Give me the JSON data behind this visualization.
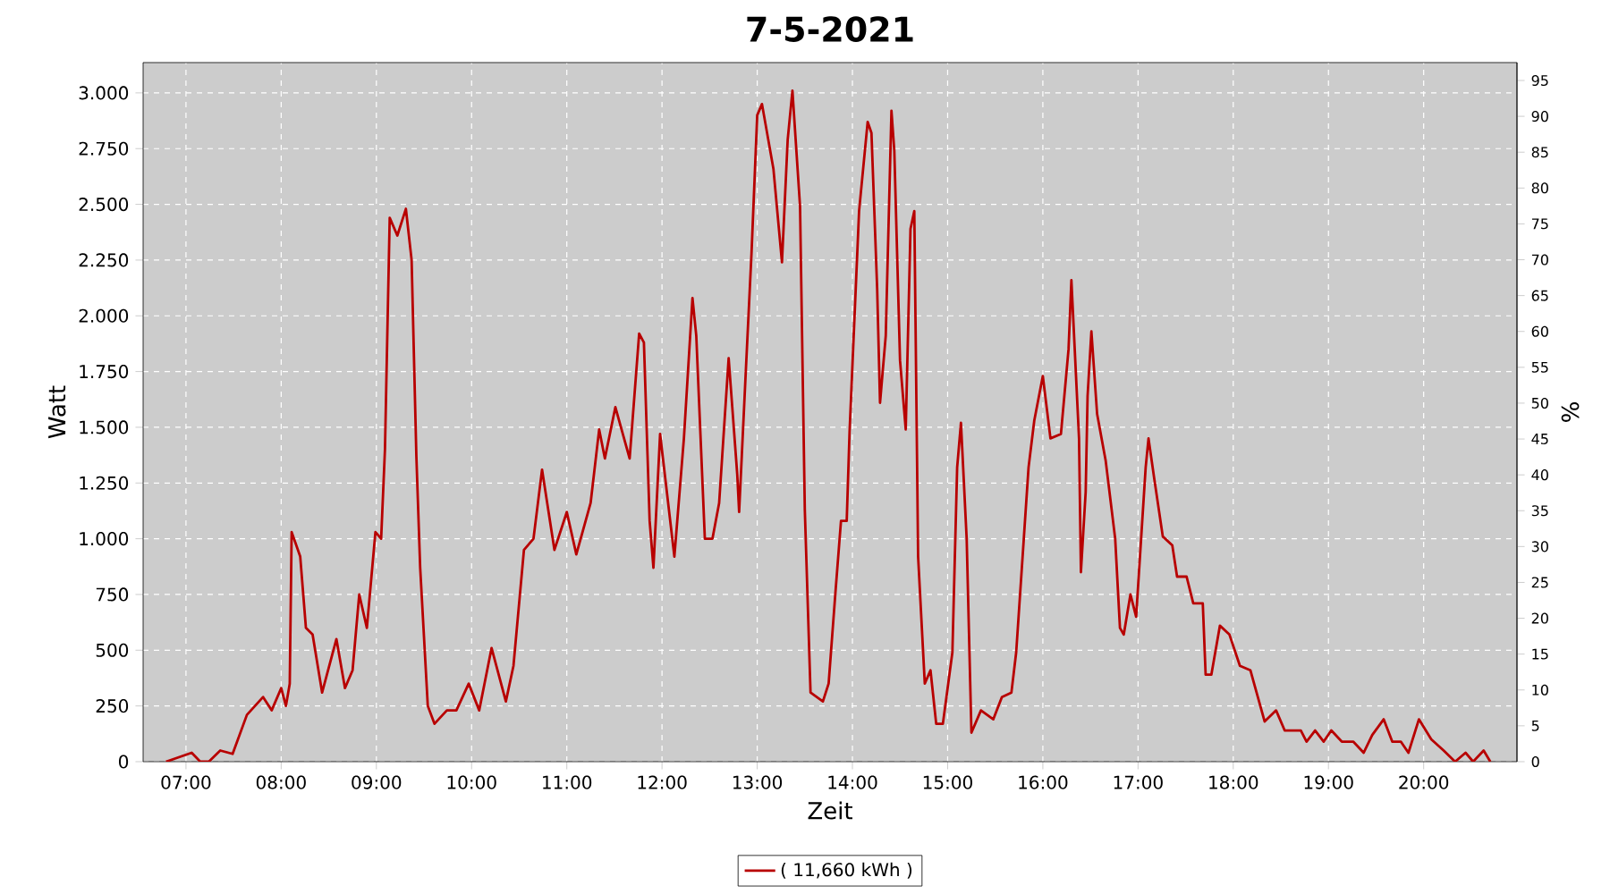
{
  "chart_data": {
    "type": "line",
    "title": "7-5-2021",
    "xlabel": "Zeit",
    "ylabel": "Watt",
    "y2label": "%",
    "x": [
      6.79,
      7.06,
      7.15,
      7.24,
      7.36,
      7.49,
      7.64,
      7.81,
      7.9,
      8.0,
      8.05,
      8.09,
      8.11,
      8.2,
      8.26,
      8.33,
      8.43,
      8.58,
      8.67,
      8.75,
      8.82,
      8.9,
      8.99,
      9.05,
      9.09,
      9.14,
      9.22,
      9.31,
      9.37,
      9.42,
      9.46,
      9.54,
      9.61,
      9.74,
      9.84,
      9.97,
      10.08,
      10.21,
      10.36,
      10.44,
      10.55,
      10.65,
      10.74,
      10.87,
      11.0,
      11.1,
      11.25,
      11.34,
      11.4,
      11.51,
      11.66,
      11.76,
      11.81,
      11.87,
      11.91,
      11.98,
      12.13,
      12.23,
      12.32,
      12.36,
      12.45,
      12.53,
      12.6,
      12.7,
      12.79,
      12.81,
      12.88,
      12.94,
      13.0,
      13.05,
      13.17,
      13.26,
      13.32,
      13.37,
      13.45,
      13.5,
      13.56,
      13.69,
      13.75,
      13.82,
      13.88,
      13.94,
      13.97,
      14.07,
      14.16,
      14.2,
      14.26,
      14.29,
      14.35,
      14.41,
      14.44,
      14.5,
      14.56,
      14.61,
      14.65,
      14.69,
      14.76,
      14.82,
      14.88,
      14.95,
      15.05,
      15.1,
      15.14,
      15.2,
      15.25,
      15.35,
      15.48,
      15.57,
      15.67,
      15.72,
      15.8,
      15.85,
      15.91,
      16.0,
      16.08,
      16.19,
      16.27,
      16.3,
      16.38,
      16.4,
      16.45,
      16.47,
      16.51,
      16.57,
      16.66,
      16.76,
      16.81,
      16.85,
      16.92,
      16.98,
      17.08,
      17.11,
      17.17,
      17.26,
      17.36,
      17.41,
      17.51,
      17.58,
      17.68,
      17.71,
      17.77,
      17.86,
      17.96,
      18.07,
      18.18,
      18.33,
      18.45,
      18.54,
      18.71,
      18.77,
      18.86,
      18.95,
      19.03,
      19.14,
      19.26,
      19.37,
      19.46,
      19.58,
      19.67,
      19.76,
      19.84,
      19.95,
      20.08,
      20.21,
      20.33,
      20.44,
      20.52,
      20.63,
      20.7
    ],
    "series": [
      {
        "name": "( 11,660 kWh )",
        "color": "#b80000",
        "values": [
          0,
          40,
          0,
          0,
          50,
          35,
          210,
          290,
          230,
          330,
          250,
          350,
          1030,
          920,
          600,
          570,
          310,
          550,
          330,
          410,
          750,
          600,
          1030,
          1000,
          1400,
          2440,
          2360,
          2480,
          2250,
          1370,
          870,
          250,
          170,
          230,
          230,
          350,
          230,
          510,
          270,
          430,
          950,
          1000,
          1310,
          950,
          1120,
          930,
          1160,
          1490,
          1360,
          1590,
          1360,
          1920,
          1880,
          1080,
          870,
          1470,
          920,
          1450,
          2080,
          1910,
          1000,
          1000,
          1160,
          1810,
          1290,
          1120,
          1750,
          2280,
          2900,
          2950,
          2660,
          2240,
          2790,
          3010,
          2490,
          1130,
          310,
          270,
          350,
          750,
          1080,
          1080,
          1480,
          2470,
          2870,
          2820,
          2120,
          1610,
          1910,
          2920,
          2740,
          1800,
          1490,
          2390,
          2470,
          920,
          350,
          410,
          170,
          170,
          490,
          1320,
          1520,
          1000,
          130,
          230,
          190,
          290,
          310,
          490,
          1000,
          1320,
          1530,
          1730,
          1450,
          1470,
          1850,
          2160,
          1450,
          850,
          1210,
          1640,
          1930,
          1560,
          1350,
          1000,
          600,
          570,
          750,
          650,
          1320,
          1450,
          1270,
          1010,
          970,
          830,
          830,
          710,
          710,
          390,
          390,
          610,
          570,
          430,
          410,
          180,
          230,
          140,
          140,
          90,
          140,
          90,
          140,
          90,
          90,
          40,
          120,
          190,
          90,
          90,
          40,
          190,
          100,
          50,
          0,
          40,
          0,
          50,
          0
        ]
      }
    ],
    "xlim": [
      6.55,
      20.98
    ],
    "xticks": [
      {
        "value": 7,
        "label": "07:00"
      },
      {
        "value": 8,
        "label": "08:00"
      },
      {
        "value": 9,
        "label": "09:00"
      },
      {
        "value": 10,
        "label": "10:00"
      },
      {
        "value": 11,
        "label": "11:00"
      },
      {
        "value": 12,
        "label": "12:00"
      },
      {
        "value": 13,
        "label": "13:00"
      },
      {
        "value": 14,
        "label": "14:00"
      },
      {
        "value": 15,
        "label": "15:00"
      },
      {
        "value": 16,
        "label": "16:00"
      },
      {
        "value": 17,
        "label": "17:00"
      },
      {
        "value": 18,
        "label": "18:00"
      },
      {
        "value": 19,
        "label": "19:00"
      },
      {
        "value": 20,
        "label": "20:00"
      }
    ],
    "ylim": [
      0,
      3136
    ],
    "yticks": [
      0,
      250,
      500,
      750,
      {
        "value": 1000,
        "label": "1.000"
      },
      {
        "value": 1250,
        "label": "1.250"
      },
      {
        "value": 1500,
        "label": "1.500"
      },
      {
        "value": 1750,
        "label": "1.750"
      },
      {
        "value": 2000,
        "label": "2.000"
      },
      {
        "value": 2250,
        "label": "2.250"
      },
      {
        "value": 2500,
        "label": "2.500"
      },
      {
        "value": 2750,
        "label": "2.750"
      },
      {
        "value": 3000,
        "label": "3.000"
      }
    ],
    "y2lim": [
      0,
      97.5
    ],
    "y2ticks": [
      0,
      5,
      10,
      15,
      20,
      25,
      30,
      35,
      40,
      45,
      50,
      55,
      60,
      65,
      70,
      75,
      80,
      85,
      90,
      95
    ],
    "grid": true,
    "legend": "bottom",
    "marker": "none",
    "line_style": "solid"
  }
}
